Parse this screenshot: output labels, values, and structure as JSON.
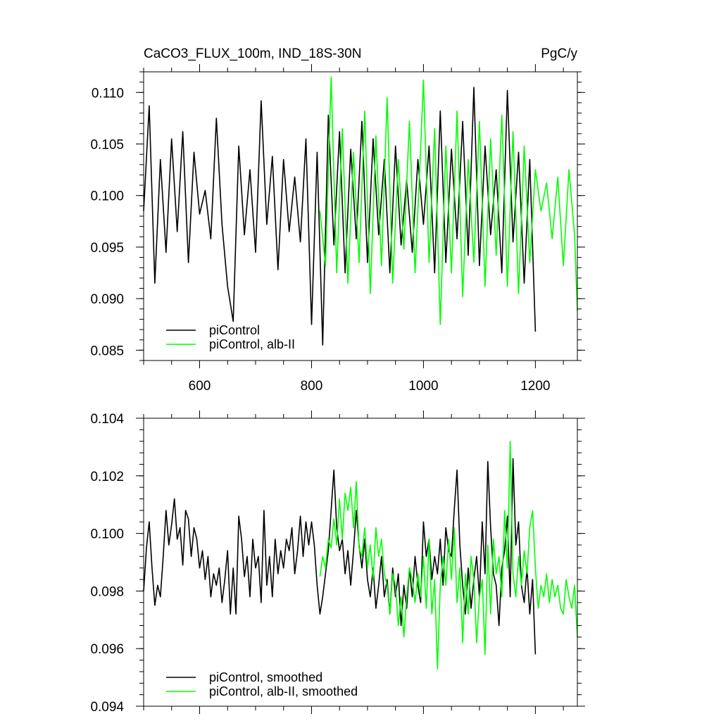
{
  "figure": {
    "title_left": "CaCO3_FLUX_100m, IND_18S-30N",
    "title_right": "PgC/y"
  },
  "chart_data": [
    {
      "type": "line",
      "xlim": [
        500,
        1275
      ],
      "ylim": [
        0.084,
        0.112
      ],
      "x_ticks": [
        600,
        800,
        1000,
        1200
      ],
      "x_tick_labels": [
        "600",
        "800",
        "1000",
        "1200"
      ],
      "y_ticks": [
        0.085,
        0.09,
        0.095,
        0.1,
        0.105,
        0.11
      ],
      "y_tick_labels": [
        "0.085",
        "0.090",
        "0.095",
        "0.100",
        "0.105",
        "0.110"
      ],
      "grid": false,
      "legend_position": "bottom-left",
      "series": [
        {
          "name": "piControl",
          "color": "#000000",
          "x": [
            500,
            510,
            520,
            530,
            540,
            550,
            560,
            570,
            580,
            590,
            600,
            610,
            620,
            630,
            640,
            650,
            660,
            670,
            680,
            690,
            700,
            710,
            720,
            730,
            740,
            750,
            760,
            770,
            780,
            790,
            800,
            810,
            820,
            830,
            840,
            850,
            860,
            870,
            880,
            890,
            900,
            910,
            920,
            930,
            940,
            950,
            960,
            970,
            980,
            990,
            1000,
            1010,
            1020,
            1030,
            1040,
            1050,
            1060,
            1070,
            1080,
            1090,
            1100,
            1110,
            1120,
            1130,
            1140,
            1150,
            1160,
            1170,
            1180,
            1190,
            1200
          ],
          "y": [
            0.0985,
            0.1087,
            0.0915,
            0.1035,
            0.0945,
            0.1055,
            0.0965,
            0.1062,
            0.0935,
            0.1042,
            0.0982,
            0.1005,
            0.0958,
            0.1075,
            0.0972,
            0.0912,
            0.0878,
            0.1048,
            0.0962,
            0.1025,
            0.0945,
            0.1092,
            0.0972,
            0.1038,
            0.0928,
            0.1035,
            0.0965,
            0.1018,
            0.0955,
            0.1055,
            0.0875,
            0.1042,
            0.0855,
            0.1078,
            0.0952,
            0.1062,
            0.0925,
            0.1045,
            0.0958,
            0.1072,
            0.0935,
            0.1055,
            0.0962,
            0.1035,
            0.0925,
            0.1048,
            0.0952,
            0.1015,
            0.0945,
            0.1035,
            0.0972,
            0.1048,
            0.0925,
            0.1082,
            0.0935,
            0.1045,
            0.0958,
            0.1072,
            0.0942,
            0.1105,
            0.0932,
            0.1048,
            0.0962,
            0.1025,
            0.0925,
            0.1102,
            0.0955,
            0.1042,
            0.0915,
            0.1035,
            0.0868
          ]
        },
        {
          "name": "piControl, alb-II",
          "color": "#00ff00",
          "x": [
            815,
            825,
            835,
            845,
            855,
            865,
            875,
            885,
            895,
            905,
            915,
            925,
            935,
            945,
            955,
            965,
            975,
            985,
            995,
            1000,
            1010,
            1020,
            1030,
            1040,
            1050,
            1060,
            1070,
            1080,
            1090,
            1100,
            1110,
            1120,
            1130,
            1140,
            1150,
            1160,
            1170,
            1180,
            1190,
            1200,
            1210,
            1220,
            1230,
            1240,
            1250,
            1260,
            1270,
            1275
          ],
          "y": [
            0.0985,
            0.0932,
            0.1115,
            0.0925,
            0.1065,
            0.0915,
            0.1042,
            0.0935,
            0.1082,
            0.0905,
            0.1058,
            0.0932,
            0.1095,
            0.0915,
            0.1035,
            0.0948,
            0.1072,
            0.0925,
            0.1045,
            0.1112,
            0.0935,
            0.1065,
            0.0875,
            0.1048,
            0.0925,
            0.1082,
            0.0902,
            0.1035,
            0.0935,
            0.1072,
            0.0912,
            0.1055,
            0.0942,
            0.1078,
            0.0912,
            0.1062,
            0.0905,
            0.1048,
            0.0935,
            0.1025,
            0.0985,
            0.1012,
            0.0958,
            0.1018,
            0.0932,
            0.1025,
            0.0962,
            0.0888
          ]
        }
      ]
    },
    {
      "type": "line",
      "xlim": [
        500,
        1275
      ],
      "ylim": [
        0.094,
        0.104
      ],
      "x_ticks": [
        600,
        800,
        1000,
        1200
      ],
      "x_tick_labels": [],
      "y_ticks": [
        0.094,
        0.096,
        0.098,
        0.1,
        0.102,
        0.104
      ],
      "y_tick_labels": [
        "0.094",
        "0.096",
        "0.098",
        "0.100",
        "0.102",
        "0.104"
      ],
      "grid": false,
      "legend_position": "bottom-left",
      "series": [
        {
          "name": "piControl, smoothed",
          "color": "#000000",
          "x": [
            500,
            505,
            510,
            515,
            520,
            525,
            530,
            535,
            540,
            545,
            550,
            555,
            560,
            565,
            570,
            575,
            580,
            585,
            590,
            595,
            600,
            605,
            610,
            615,
            620,
            625,
            630,
            635,
            640,
            645,
            650,
            655,
            660,
            665,
            670,
            675,
            680,
            685,
            690,
            695,
            700,
            705,
            710,
            715,
            720,
            725,
            730,
            735,
            740,
            745,
            750,
            755,
            760,
            765,
            770,
            775,
            780,
            785,
            790,
            795,
            800,
            805,
            810,
            815,
            820,
            825,
            830,
            835,
            840,
            845,
            850,
            855,
            860,
            865,
            870,
            875,
            880,
            885,
            890,
            895,
            900,
            905,
            910,
            915,
            920,
            925,
            930,
            935,
            940,
            945,
            950,
            955,
            960,
            965,
            970,
            975,
            980,
            985,
            990,
            995,
            1000,
            1005,
            1010,
            1015,
            1020,
            1025,
            1030,
            1035,
            1040,
            1045,
            1050,
            1055,
            1060,
            1065,
            1070,
            1075,
            1080,
            1085,
            1090,
            1095,
            1100,
            1105,
            1110,
            1115,
            1120,
            1125,
            1130,
            1135,
            1140,
            1145,
            1150,
            1155,
            1160,
            1165,
            1170,
            1175,
            1180,
            1185,
            1190,
            1195,
            1200
          ],
          "y": [
            0.098,
            0.0995,
            0.1004,
            0.0988,
            0.0975,
            0.0982,
            0.0978,
            0.0992,
            0.1008,
            0.0996,
            0.1003,
            0.1012,
            0.0998,
            0.1002,
            0.0989,
            0.1008,
            0.1005,
            0.0992,
            0.1002,
            0.0998,
            0.0988,
            0.0994,
            0.0984,
            0.0992,
            0.0978,
            0.0986,
            0.0982,
            0.0988,
            0.0976,
            0.0984,
            0.0994,
            0.0972,
            0.0988,
            0.0972,
            0.1006,
            0.0998,
            0.0985,
            0.0992,
            0.0978,
            0.0998,
            0.0988,
            0.0992,
            0.0976,
            0.1008,
            0.0982,
            0.0992,
            0.0978,
            0.0998,
            0.0986,
            0.0994,
            0.0988,
            0.0998,
            0.0994,
            0.1002,
            0.0986,
            0.0994,
            0.1006,
            0.0992,
            0.1004,
            0.0996,
            0.1004,
            0.0996,
            0.0982,
            0.0972,
            0.0978,
            0.0986,
            0.0994,
            0.1008,
            0.1022,
            0.1002,
            0.0994,
            0.0998,
            0.0986,
            0.0994,
            0.0982,
            0.0994,
            0.1008,
            0.0996,
            0.0988,
            0.0998,
            0.0984,
            0.0978,
            0.0988,
            0.0974,
            0.0982,
            0.0992,
            0.0978,
            0.0984,
            0.0972,
            0.0988,
            0.0978,
            0.0986,
            0.0968,
            0.0982,
            0.0974,
            0.0988,
            0.0978,
            0.0992,
            0.0982,
            0.0976,
            0.1004,
            0.0992,
            0.0998,
            0.0984,
            0.0992,
            0.0986,
            0.0998,
            0.0982,
            0.1002,
            0.0994,
            0.0992,
            0.1008,
            0.1022,
            0.0996,
            0.0982,
            0.0972,
            0.0988,
            0.0974,
            0.0984,
            0.0992,
            0.0978,
            0.1004,
            0.0986,
            0.1025,
            0.1002,
            0.0986,
            0.0982,
            0.0968,
            0.0988,
            0.0994,
            0.1006,
            0.0978,
            0.1026,
            0.0996,
            0.1004,
            0.0982,
            0.0976,
            0.0988,
            0.0972,
            0.0984,
            0.0958
          ]
        },
        {
          "name": "piControl, alb-II, smoothed",
          "color": "#00ff00",
          "x": [
            815,
            820,
            825,
            830,
            835,
            840,
            845,
            850,
            855,
            860,
            865,
            870,
            875,
            880,
            885,
            890,
            895,
            900,
            905,
            910,
            915,
            920,
            925,
            930,
            935,
            940,
            945,
            950,
            955,
            960,
            965,
            970,
            975,
            980,
            985,
            990,
            995,
            1000,
            1005,
            1010,
            1015,
            1020,
            1025,
            1030,
            1035,
            1040,
            1045,
            1050,
            1055,
            1060,
            1065,
            1070,
            1075,
            1080,
            1085,
            1090,
            1095,
            1100,
            1105,
            1110,
            1115,
            1120,
            1125,
            1130,
            1135,
            1140,
            1145,
            1150,
            1155,
            1160,
            1165,
            1170,
            1175,
            1180,
            1185,
            1190,
            1195,
            1200,
            1205,
            1210,
            1215,
            1220,
            1225,
            1230,
            1235,
            1240,
            1245,
            1250,
            1255,
            1260,
            1265,
            1270,
            1275
          ],
          "y": [
            0.0985,
            0.0992,
            0.0988,
            0.0998,
            0.0995,
            0.1005,
            0.0996,
            0.1012,
            0.0998,
            0.1014,
            0.1008,
            0.1016,
            0.1002,
            0.1018,
            0.0995,
            0.0992,
            0.1002,
            0.0988,
            0.0996,
            0.0984,
            0.1002,
            0.0992,
            0.0998,
            0.0986,
            0.0982,
            0.0972,
            0.0986,
            0.0982,
            0.0968,
            0.0978,
            0.0964,
            0.0978,
            0.0988,
            0.0984,
            0.0976,
            0.0986,
            0.0978,
            0.0992,
            0.0974,
            0.0998,
            0.0972,
            0.0984,
            0.0953,
            0.0982,
            0.0992,
            0.0982,
            0.0998,
            0.0984,
            0.1002,
            0.0976,
            0.0988,
            0.0962,
            0.0986,
            0.0972,
            0.0992,
            0.0984,
            0.0962,
            0.0978,
            0.0984,
            0.0958,
            0.0996,
            0.0972,
            0.0998,
            0.0986,
            0.0992,
            0.0978,
            0.1008,
            0.0988,
            0.1032,
            0.0986,
            0.0978,
            0.0992,
            0.0982,
            0.0994,
            0.0986,
            0.1002,
            0.1008,
            0.0988,
            0.0974,
            0.0982,
            0.0978,
            0.0986,
            0.0976,
            0.0984,
            0.0978,
            0.0982,
            0.0974,
            0.0972,
            0.0984,
            0.0978,
            0.0974,
            0.0982,
            0.0964
          ]
        }
      ]
    }
  ]
}
